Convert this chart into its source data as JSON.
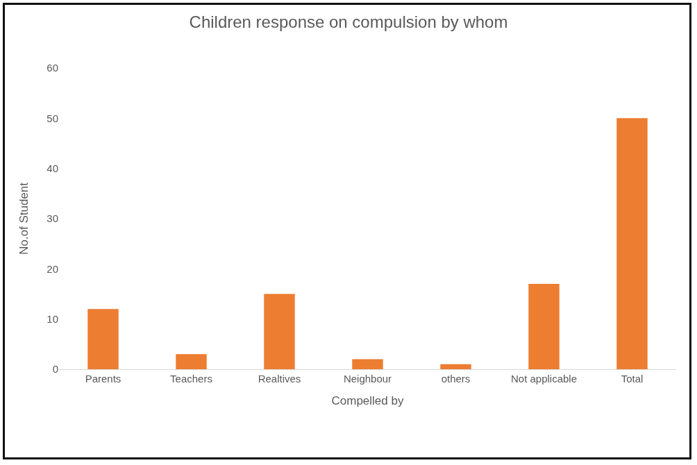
{
  "chart_data": {
    "type": "bar",
    "title": "Children response on compulsion by whom",
    "xlabel": "Compelled by",
    "ylabel": "No.of Student",
    "categories": [
      "Parents",
      "Teachers",
      "Realtives",
      "Neighbour",
      "others",
      "Not applicable",
      "Total"
    ],
    "values": [
      12,
      3,
      15,
      2,
      1,
      17,
      50
    ],
    "color": "#ed7d31",
    "ylim": [
      0,
      60
    ],
    "yticks": [
      0,
      10,
      20,
      30,
      40,
      50,
      60
    ],
    "grid": false
  }
}
